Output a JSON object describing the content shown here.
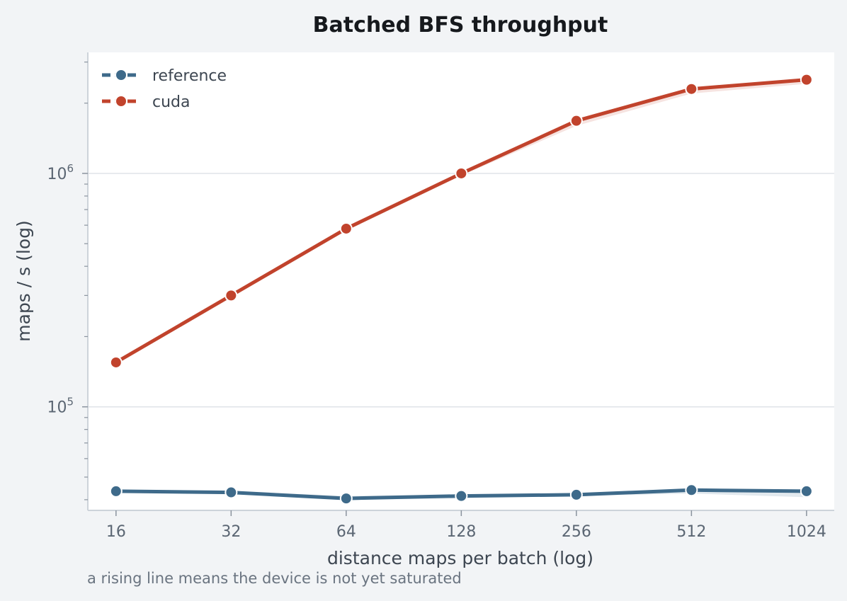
{
  "chart_data": {
    "type": "line",
    "title": "Batched BFS throughput",
    "xlabel": "distance maps per batch (log)",
    "ylabel": "maps / s (log)",
    "footnote": "a rising line means the device is not yet saturated",
    "x_scale": "log2",
    "y_scale": "log10",
    "x": [
      16,
      32,
      64,
      128,
      256,
      512,
      1024
    ],
    "x_tick_labels": [
      "16",
      "32",
      "64",
      "128",
      "256",
      "512",
      "1024"
    ],
    "y_ticks": [
      {
        "value": 100000,
        "base": "10",
        "exp": "5"
      },
      {
        "value": 1000000,
        "base": "10",
        "exp": "6"
      }
    ],
    "ylim": [
      36000,
      3300000
    ],
    "xlim": [
      13.5,
      1210
    ],
    "grid": "horizontal major",
    "legend_position": "top-left",
    "series": [
      {
        "name": "reference",
        "color": "#3e6a8a",
        "values": [
          43500,
          43000,
          40500,
          41500,
          42000,
          44000,
          43500
        ],
        "band_low": [
          43500,
          42500,
          40000,
          40500,
          41500,
          42500,
          41000
        ],
        "band_high": [
          43500,
          43500,
          41500,
          42000,
          42500,
          44500,
          44000
        ]
      },
      {
        "name": "cuda",
        "color": "#c1432c",
        "values": [
          155000,
          300000,
          580000,
          1000000,
          1680000,
          2300000,
          2520000
        ],
        "band_low": [
          155000,
          294000,
          568000,
          980000,
          1600000,
          2200000,
          2420000
        ],
        "band_high": [
          155000,
          302000,
          588000,
          1010000,
          1700000,
          2330000,
          2560000
        ]
      }
    ]
  }
}
